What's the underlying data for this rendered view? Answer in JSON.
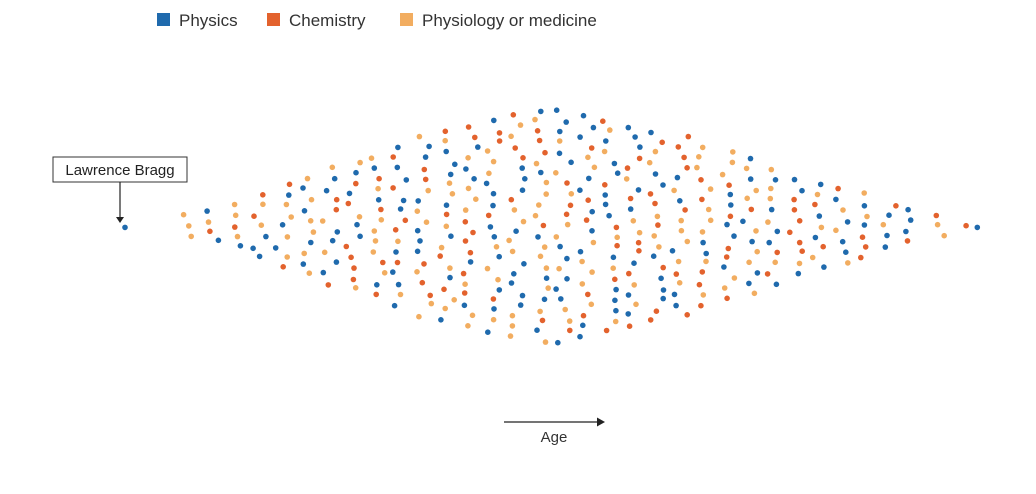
{
  "chart_data": {
    "type": "scatter",
    "layout": "beeswarm",
    "title": "",
    "xlabel": "Age",
    "ylabel": "",
    "series": [
      {
        "name": "Physics",
        "color": "#1f6aad"
      },
      {
        "name": "Chemistry",
        "color": "#e3622d"
      },
      {
        "name": "Physiology or medicine",
        "color": "#f2ad60"
      }
    ],
    "density_profile": {
      "bins": 38,
      "counts": [
        1,
        0,
        0,
        3,
        4,
        5,
        7,
        9,
        10,
        12,
        13,
        14,
        16,
        18,
        19,
        20,
        21,
        22,
        23,
        23,
        22,
        21,
        20,
        19,
        18,
        16,
        15,
        14,
        12,
        10,
        9,
        8,
        7,
        5,
        4,
        3,
        1,
        1
      ]
    },
    "annotations": [
      {
        "label": "Lawrence Bragg",
        "series": "Physics",
        "point": "youngest laureate (leftmost dot)"
      }
    ]
  }
}
